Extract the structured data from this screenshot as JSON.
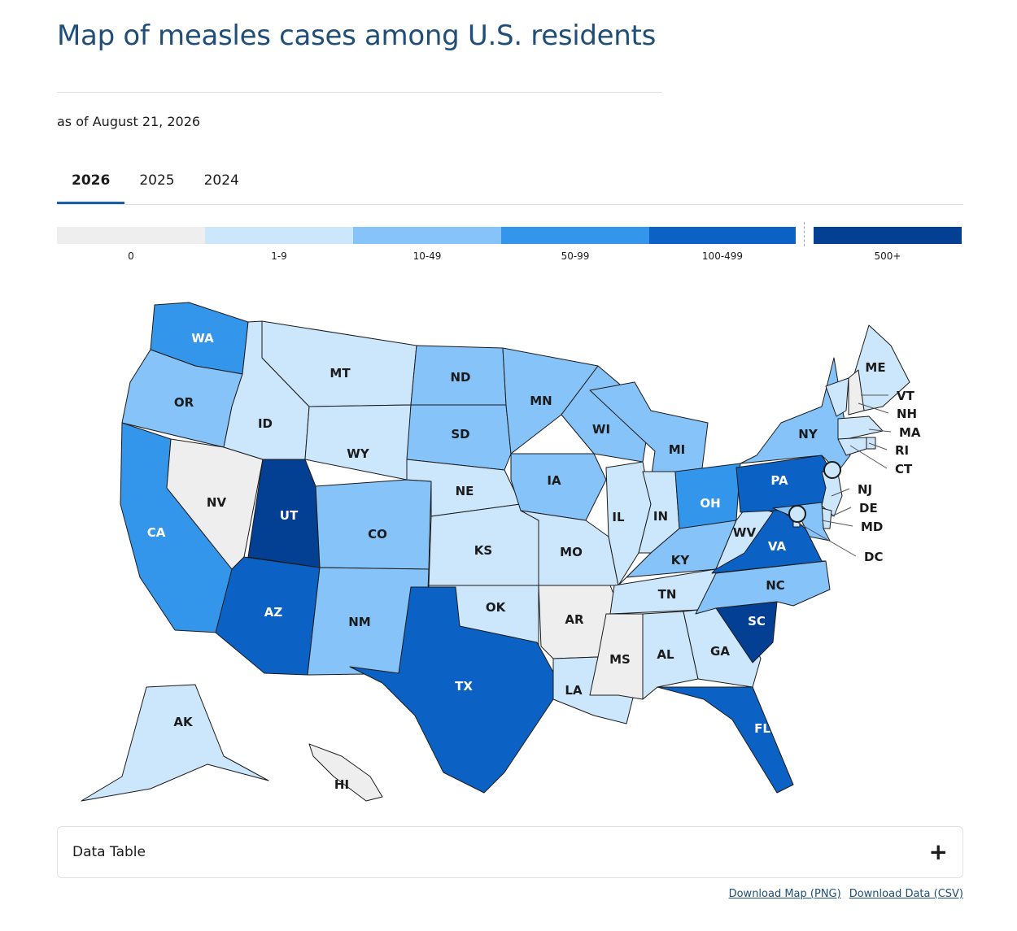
{
  "page": {
    "title": "Map of measles cases among U.S. residents",
    "subtitle": "as of August 21, 2026"
  },
  "tabs": [
    {
      "label": "2026",
      "active": true
    },
    {
      "label": "2025",
      "active": false
    },
    {
      "label": "2024",
      "active": false
    }
  ],
  "legend": [
    {
      "label": "0",
      "color": "#eeeeee"
    },
    {
      "label": "1-9",
      "color": "#cce6fc"
    },
    {
      "label": "10-49",
      "color": "#86c3f9"
    },
    {
      "label": "50-99",
      "color": "#3496eb"
    },
    {
      "label": "100-499",
      "color": "#0b62c4"
    },
    {
      "label": "500+",
      "color": "#033f93"
    }
  ],
  "map": {
    "states": [
      {
        "id": "WA",
        "bin": 3
      },
      {
        "id": "OR",
        "bin": 2
      },
      {
        "id": "CA",
        "bin": 3
      },
      {
        "id": "NV",
        "bin": 0
      },
      {
        "id": "ID",
        "bin": 1
      },
      {
        "id": "MT",
        "bin": 1
      },
      {
        "id": "WY",
        "bin": 1
      },
      {
        "id": "UT",
        "bin": 5
      },
      {
        "id": "AZ",
        "bin": 4
      },
      {
        "id": "CO",
        "bin": 2
      },
      {
        "id": "NM",
        "bin": 2
      },
      {
        "id": "ND",
        "bin": 2
      },
      {
        "id": "SD",
        "bin": 2
      },
      {
        "id": "NE",
        "bin": 1
      },
      {
        "id": "KS",
        "bin": 1
      },
      {
        "id": "OK",
        "bin": 1
      },
      {
        "id": "TX",
        "bin": 4
      },
      {
        "id": "MN",
        "bin": 2
      },
      {
        "id": "IA",
        "bin": 2
      },
      {
        "id": "MO",
        "bin": 1
      },
      {
        "id": "AR",
        "bin": 0
      },
      {
        "id": "LA",
        "bin": 1
      },
      {
        "id": "WI",
        "bin": 2
      },
      {
        "id": "IL",
        "bin": 1
      },
      {
        "id": "MI",
        "bin": 2
      },
      {
        "id": "IN",
        "bin": 1
      },
      {
        "id": "OH",
        "bin": 3
      },
      {
        "id": "KY",
        "bin": 2
      },
      {
        "id": "TN",
        "bin": 1
      },
      {
        "id": "MS",
        "bin": 0
      },
      {
        "id": "AL",
        "bin": 1
      },
      {
        "id": "GA",
        "bin": 1
      },
      {
        "id": "FL",
        "bin": 4
      },
      {
        "id": "SC",
        "bin": 5
      },
      {
        "id": "NC",
        "bin": 2
      },
      {
        "id": "VA",
        "bin": 4
      },
      {
        "id": "WV",
        "bin": 1
      },
      {
        "id": "PA",
        "bin": 4
      },
      {
        "id": "NY",
        "bin": 2
      },
      {
        "id": "ME",
        "bin": 1
      },
      {
        "id": "VT",
        "bin": 1
      },
      {
        "id": "NH",
        "bin": 0
      },
      {
        "id": "MA",
        "bin": 1
      },
      {
        "id": "RI",
        "bin": 1
      },
      {
        "id": "CT",
        "bin": 1
      },
      {
        "id": "NJ",
        "bin": 1
      },
      {
        "id": "DE",
        "bin": 1
      },
      {
        "id": "MD",
        "bin": 2
      },
      {
        "id": "DC",
        "bin": 1
      },
      {
        "id": "AK",
        "bin": 1
      },
      {
        "id": "HI",
        "bin": 0
      }
    ]
  },
  "data_table": {
    "label": "Data Table",
    "toggle": "+"
  },
  "downloads": {
    "map_png": "Download Map (PNG)",
    "data_csv": "Download Data (CSV)"
  }
}
